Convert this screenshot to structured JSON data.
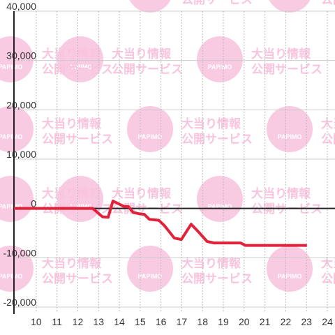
{
  "chart_data": {
    "type": "line",
    "x": [
      8.93,
      12.72,
      13.19,
      13.46,
      13.69,
      14.03,
      14.23,
      14.43,
      14.66,
      14.97,
      15.2,
      15.44,
      15.9,
      16.17,
      16.64,
      16.98,
      17.45,
      17.75,
      18.22,
      18.56,
      19.83,
      20.07,
      23.02
    ],
    "series": [
      {
        "color": "#e0223a",
        "values": [
          0,
          0,
          -1700,
          -1800,
          1500,
          800,
          400,
          400,
          -800,
          -1100,
          -1200,
          -2200,
          -2400,
          -3500,
          -6000,
          -6300,
          -3200,
          -4500,
          -6700,
          -7000,
          -7000,
          -7500,
          -7500
        ]
      }
    ],
    "xlim": [
      8.93,
      24.37
    ],
    "xticks": [
      10,
      11,
      12,
      13,
      14,
      15,
      16,
      17,
      18,
      19,
      20,
      21,
      22,
      23,
      24
    ],
    "ylim": [
      -20000,
      40000
    ],
    "yticks": [
      {
        "value": -20000,
        "label": "-20,000"
      },
      {
        "value": -10000,
        "label": "-10,000"
      },
      0,
      {
        "value": 10000,
        "label": "10,000"
      },
      {
        "value": 20000,
        "label": "20,000"
      },
      {
        "value": 30000,
        "label": "30,000"
      },
      {
        "value": 40000,
        "label": "40,000"
      }
    ],
    "grid": true
  },
  "watermark": {
    "logo": "PAPIMO",
    "line1": "大当り情報",
    "line2": "公開サービス"
  }
}
